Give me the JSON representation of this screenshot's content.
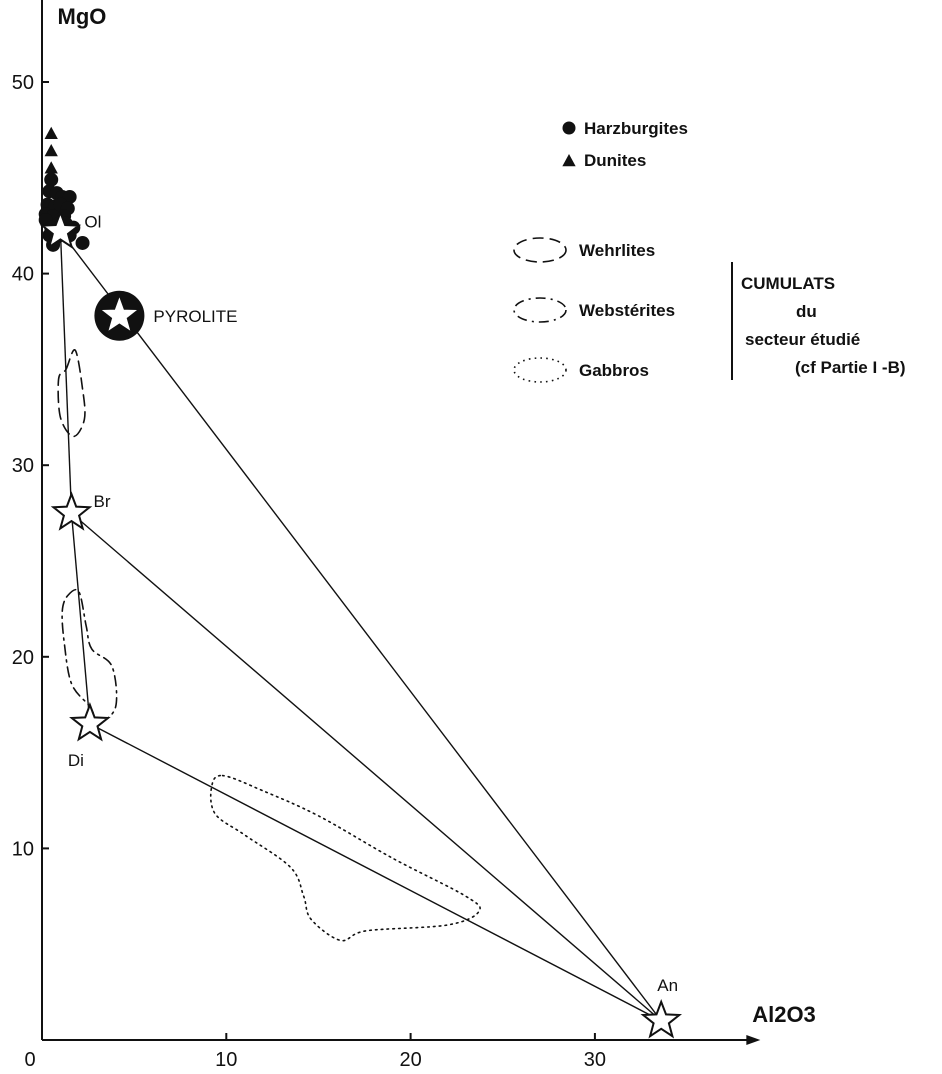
{
  "chart_data": {
    "type": "scatter",
    "title": "",
    "xlabel": "Al2O3",
    "ylabel": "MgO",
    "xlim": [
      0,
      38
    ],
    "ylim": [
      0,
      55
    ],
    "x_ticks": [
      0,
      10,
      20,
      30
    ],
    "y_ticks": [
      10,
      20,
      30,
      40,
      50
    ],
    "x_tick_labels": [
      "0",
      "10",
      "20",
      "30"
    ],
    "y_tick_labels": [
      "10",
      "20",
      "30",
      "40",
      "50"
    ],
    "grid": false,
    "series": [
      {
        "name": "Harzburgites",
        "marker": "circle",
        "points": [
          [
            0.5,
            44.9
          ],
          [
            0.4,
            44.3
          ],
          [
            0.8,
            44.2
          ],
          [
            1.1,
            44.0
          ],
          [
            1.5,
            44.0
          ],
          [
            0.3,
            43.6
          ],
          [
            0.7,
            43.5
          ],
          [
            1.0,
            43.6
          ],
          [
            1.4,
            43.4
          ],
          [
            0.2,
            43.1
          ],
          [
            0.6,
            43.0
          ],
          [
            1.2,
            43.0
          ],
          [
            0.2,
            42.8
          ],
          [
            0.9,
            42.6
          ],
          [
            1.3,
            42.6
          ],
          [
            0.5,
            42.4
          ],
          [
            1.0,
            42.2
          ],
          [
            1.7,
            42.4
          ],
          [
            0.4,
            42.0
          ],
          [
            1.5,
            42.0
          ],
          [
            0.8,
            41.9
          ],
          [
            0.6,
            41.5
          ],
          [
            2.2,
            41.6
          ]
        ]
      },
      {
        "name": "Dunites",
        "marker": "triangle",
        "points": [
          [
            0.5,
            47.3
          ],
          [
            0.5,
            46.4
          ],
          [
            0.5,
            45.5
          ]
        ]
      }
    ],
    "end_members": [
      {
        "label": "Ol",
        "x": 1.0,
        "y": 42.2
      },
      {
        "label": "PYROLITE",
        "x": 4.2,
        "y": 37.8
      },
      {
        "label": "Br",
        "x": 1.6,
        "y": 27.5
      },
      {
        "label": "Di",
        "x": 2.6,
        "y": 16.5
      },
      {
        "label": "An",
        "x": 33.6,
        "y": 1.0
      }
    ],
    "tie_lines": [
      [
        "Ol",
        "An"
      ],
      [
        "Ol",
        "Br"
      ],
      [
        "Br",
        "Di"
      ],
      [
        "Br",
        "An"
      ],
      [
        "Di",
        "An"
      ]
    ],
    "fields": [
      {
        "name": "Wehrlites",
        "style": "dashed",
        "polygon": [
          [
            1.3,
            35
          ],
          [
            1.8,
            36
          ],
          [
            2.2,
            34
          ],
          [
            2.3,
            32.4
          ],
          [
            1.7,
            31.5
          ],
          [
            1.0,
            32.5
          ],
          [
            0.9,
            34.5
          ]
        ]
      },
      {
        "name": "Webstérites",
        "style": "dash-dot",
        "polygon": [
          [
            1.4,
            23.2
          ],
          [
            2.0,
            23.4
          ],
          [
            2.4,
            21.6
          ],
          [
            2.7,
            20.4
          ],
          [
            3.8,
            19.5
          ],
          [
            4.0,
            17.4
          ],
          [
            3.1,
            16.6
          ],
          [
            2.6,
            17.4
          ],
          [
            1.6,
            18.6
          ],
          [
            1.2,
            20.8
          ],
          [
            1.1,
            22.4
          ]
        ]
      },
      {
        "name": "Gabbros",
        "style": "dotted",
        "polygon": [
          [
            9.8,
            13.8
          ],
          [
            12,
            13
          ],
          [
            15,
            11.7
          ],
          [
            19,
            9.5
          ],
          [
            23,
            7.5
          ],
          [
            23.7,
            6.7
          ],
          [
            22,
            6
          ],
          [
            17.6,
            5.7
          ],
          [
            16.2,
            5.2
          ],
          [
            14.6,
            6.3
          ],
          [
            14.2,
            7.5
          ],
          [
            13.5,
            9
          ],
          [
            11,
            10.7
          ],
          [
            9.4,
            11.8
          ],
          [
            9.2,
            13.2
          ]
        ]
      }
    ],
    "legend": {
      "position": "top-right",
      "markers": [
        {
          "marker": "circle",
          "label": "Harzburgites"
        },
        {
          "marker": "triangle",
          "label": "Dunites"
        }
      ],
      "fields": [
        {
          "style": "dashed",
          "label": "Wehrlites"
        },
        {
          "style": "dash-dot",
          "label": "Webstérites"
        },
        {
          "style": "dotted",
          "label": "Gabbros"
        }
      ],
      "group_label": [
        "CUMULATS",
        "du",
        "secteur étudié",
        "(cf Partie I -B)"
      ]
    }
  }
}
